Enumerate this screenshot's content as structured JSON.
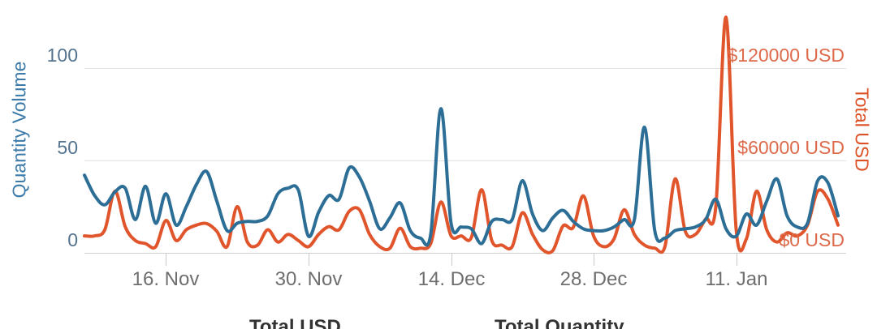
{
  "chart_data": {
    "type": "line",
    "line_style": "spline",
    "title": "",
    "grid": "horizontal",
    "legend_position": "bottom",
    "x_ticks": [
      {
        "label": "16. Nov",
        "day_index": 8
      },
      {
        "label": "30. Nov",
        "day_index": 22
      },
      {
        "label": "14. Dec",
        "day_index": 36
      },
      {
        "label": "28. Dec",
        "day_index": 50
      },
      {
        "label": "11. Jan",
        "day_index": 64
      }
    ],
    "left_axis": {
      "title": "Quantity Volume",
      "tick_labels": [
        "0",
        "50",
        "100"
      ],
      "tick_values": [
        0,
        50,
        100
      ],
      "range": [
        0,
        132
      ]
    },
    "right_axis": {
      "title": "Total USD",
      "tick_labels": [
        "$0 USD",
        "$60000 USD",
        "$120000 USD"
      ],
      "tick_values": [
        0,
        60000,
        120000
      ],
      "range": [
        0,
        158400
      ],
      "usd_per_left_unit": 1200
    },
    "series": [
      {
        "name": "Total USD",
        "axis": "right",
        "color": "#e0552b",
        "values": [
          11000,
          11000,
          15000,
          40000,
          17000,
          8000,
          6000,
          4000,
          21000,
          8000,
          15000,
          18000,
          19000,
          14000,
          4000,
          30000,
          7000,
          5000,
          15000,
          7000,
          12000,
          8000,
          4000,
          12000,
          17000,
          15000,
          27000,
          28000,
          12000,
          4000,
          3000,
          16000,
          4000,
          3000,
          6000,
          33000,
          11000,
          11000,
          10000,
          41000,
          8000,
          5000,
          4000,
          26000,
          12000,
          2000,
          1500,
          17500,
          16500,
          37000,
          11000,
          4000,
          9000,
          28000,
          12000,
          5000,
          3000,
          4000,
          48000,
          14000,
          12000,
          22000,
          30000,
          153000,
          15000,
          9000,
          40000,
          15000,
          7000,
          13000,
          11000,
          18000,
          40000,
          35000,
          18000
        ]
      },
      {
        "name": "Total Quantity",
        "axis": "left",
        "color": "#2c6e96",
        "values": [
          42,
          31,
          26,
          33,
          35,
          18,
          36,
          16,
          32,
          15,
          25,
          37,
          44,
          28,
          12,
          16,
          17,
          17,
          20,
          32,
          35,
          34,
          9,
          22,
          31,
          29,
          46,
          41,
          28,
          13,
          19,
          27,
          12,
          8,
          10,
          78,
          16,
          14,
          13,
          5,
          17,
          18,
          18,
          39,
          21,
          12,
          19,
          23,
          17,
          13,
          12,
          12,
          14,
          18,
          18,
          68,
          12,
          8,
          12,
          13,
          14,
          18,
          29,
          13,
          9,
          21,
          15,
          28,
          40,
          20,
          14,
          16,
          39,
          38,
          20
        ]
      }
    ]
  }
}
